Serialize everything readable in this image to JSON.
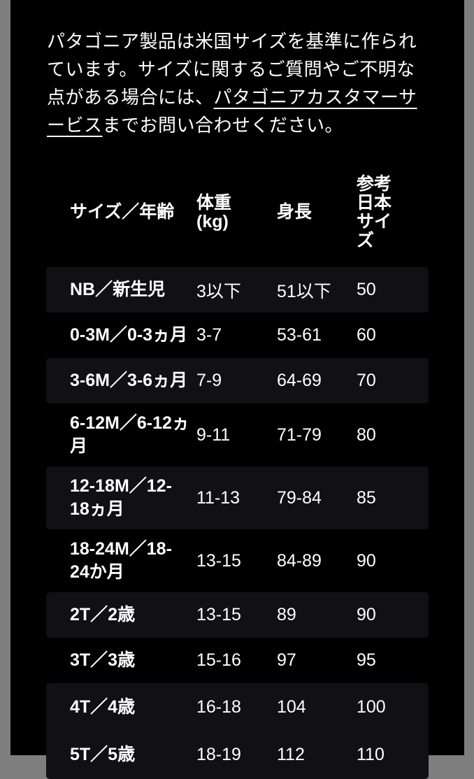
{
  "page": {
    "background_color": "#7e7e7e",
    "content_background_color": "#000000",
    "stripe_color": "#111114",
    "text_color": "#ffffff"
  },
  "intro": {
    "text_before_link": "パタゴニア製品は米国サイズを基準に作られています。サイズに関するご質問やご不明な点がある場合には、",
    "link_text": "パタゴニアカスタマーサービス",
    "text_after_link": "までお問い合わせください。"
  },
  "size_chart": {
    "columns": {
      "size_age": "サイズ／年齢",
      "weight": "体重\n(kg)",
      "height": "身長",
      "jp_size": "参考\n日本\nサイ\nズ"
    },
    "rows": [
      {
        "size_age": "NB／新生児",
        "weight_kg": "3以下",
        "height_cm": "51以下",
        "jp_size": "50",
        "shaded": true
      },
      {
        "size_age": "0-3M／0-3ヵ月",
        "weight_kg": "3-7",
        "height_cm": "53-61",
        "jp_size": "60",
        "shaded": false
      },
      {
        "size_age": "3-6M／3-6ヵ月",
        "weight_kg": "7-9",
        "height_cm": "64-69",
        "jp_size": "70",
        "shaded": true
      },
      {
        "size_age": "6-12M／6-12ヵ\n月",
        "weight_kg": "9-11",
        "height_cm": "71-79",
        "jp_size": "80",
        "shaded": false
      },
      {
        "size_age": "12-18M／12-\n18ヵ月",
        "weight_kg": "11-13",
        "height_cm": "79-84",
        "jp_size": "85",
        "shaded": true
      },
      {
        "size_age": "18-24M／18-\n24か月",
        "weight_kg": "13-15",
        "height_cm": "84-89",
        "jp_size": "90",
        "shaded": false
      },
      {
        "size_age": "2T／2歳",
        "weight_kg": "13-15",
        "height_cm": "89",
        "jp_size": "90",
        "shaded": true
      },
      {
        "size_age": "3T／3歳",
        "weight_kg": "15-16",
        "height_cm": "97",
        "jp_size": "95",
        "shaded": false
      },
      {
        "size_age": "4T／4歳",
        "weight_kg": "16-18",
        "height_cm": "104",
        "jp_size": "100",
        "shaded": true
      },
      {
        "size_age": "5T／5歳",
        "weight_kg": "18-19",
        "height_cm": "112",
        "jp_size": "110",
        "shaded": true
      }
    ]
  }
}
